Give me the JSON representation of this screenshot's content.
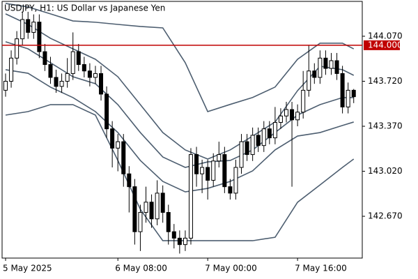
{
  "chart_data": {
    "type": "candlestick",
    "title": "USDJPY, H1:  US Dollar vs Japanese Yen",
    "categories": [
      "5 May 2025",
      null,
      null,
      null,
      null,
      null,
      null,
      null,
      null,
      null,
      null,
      null,
      null,
      null,
      null,
      null,
      null,
      null,
      null,
      null,
      "6 May 08:00",
      null,
      null,
      null,
      null,
      null,
      null,
      null,
      null,
      null,
      null,
      null,
      null,
      null,
      null,
      null,
      "7 May 00:00",
      null,
      null,
      null,
      null,
      null,
      null,
      null,
      null,
      null,
      null,
      null,
      null,
      null,
      null,
      null,
      "7 May 16:00",
      null,
      null,
      null,
      null,
      null,
      null,
      null,
      null,
      null,
      null
    ],
    "open": [
      143.65,
      143.72,
      143.9,
      144.05,
      144.2,
      144.1,
      144.18,
      143.95,
      143.85,
      143.75,
      143.68,
      143.72,
      143.78,
      143.95,
      143.85,
      143.8,
      143.75,
      143.78,
      143.62,
      143.35,
      143.2,
      143.25,
      143.0,
      142.9,
      142.55,
      142.7,
      142.78,
      142.65,
      142.85,
      142.7,
      142.55,
      142.5,
      142.45,
      142.5,
      143.15,
      143.0,
      143.05,
      142.95,
      143.1,
      143.15,
      142.9,
      142.85,
      143.05,
      143.25,
      143.15,
      143.3,
      143.22,
      143.35,
      143.28,
      143.4,
      143.45,
      143.5,
      143.42,
      143.48,
      143.65,
      143.8,
      143.75,
      143.9,
      143.82,
      143.88,
      143.78,
      143.52,
      143.65
    ],
    "high": [
      143.78,
      143.96,
      144.11,
      144.26,
      144.26,
      144.24,
      144.24,
      144.01,
      143.91,
      143.81,
      143.78,
      143.9,
      144.1,
      144.01,
      143.91,
      143.86,
      143.84,
      143.84,
      143.68,
      143.41,
      143.31,
      143.31,
      143.06,
      142.96,
      142.76,
      142.9,
      142.84,
      142.95,
      142.91,
      142.76,
      142.61,
      142.56,
      142.56,
      143.2,
      143.21,
      143.11,
      143.11,
      143.16,
      143.25,
      143.21,
      142.96,
      143.11,
      143.31,
      143.31,
      143.36,
      143.36,
      143.41,
      143.41,
      143.52,
      143.51,
      143.56,
      143.56,
      143.54,
      143.8,
      144.0,
      143.86,
      143.96,
      143.96,
      143.94,
      143.94,
      143.84,
      143.71,
      143.66
    ],
    "low": [
      143.6,
      143.67,
      143.85,
      144.0,
      144.05,
      144.05,
      143.9,
      143.8,
      143.7,
      143.63,
      143.63,
      143.67,
      143.73,
      143.8,
      143.75,
      143.68,
      143.7,
      143.57,
      143.28,
      143.05,
      143.02,
      142.9,
      142.7,
      142.45,
      142.4,
      142.62,
      142.58,
      142.6,
      142.62,
      142.45,
      142.42,
      142.38,
      142.4,
      142.45,
      142.9,
      142.85,
      142.8,
      142.9,
      143.05,
      142.85,
      142.8,
      142.8,
      143.0,
      143.1,
      143.1,
      143.17,
      143.17,
      143.23,
      143.23,
      143.35,
      143.4,
      142.9,
      143.37,
      143.43,
      143.6,
      143.7,
      143.7,
      143.77,
      143.77,
      143.73,
      143.47,
      143.47,
      143.55
    ],
    "close": [
      143.72,
      143.9,
      144.05,
      144.2,
      144.1,
      144.18,
      143.95,
      143.85,
      143.75,
      143.68,
      143.72,
      143.78,
      143.95,
      143.85,
      143.8,
      143.75,
      143.78,
      143.62,
      143.35,
      143.2,
      143.25,
      143.0,
      142.9,
      142.55,
      142.7,
      142.78,
      142.65,
      142.85,
      142.7,
      142.55,
      142.5,
      142.45,
      142.5,
      143.15,
      143.0,
      143.05,
      142.95,
      143.1,
      143.15,
      142.9,
      142.85,
      143.05,
      143.25,
      143.15,
      143.3,
      143.22,
      143.35,
      143.28,
      143.4,
      143.45,
      143.5,
      143.42,
      143.48,
      143.65,
      143.8,
      143.75,
      143.9,
      143.82,
      143.88,
      143.78,
      143.52,
      143.65,
      143.6
    ],
    "up_color": "#ffffff",
    "down_color": "#000000",
    "edge_color": "#000000",
    "bands": [
      {
        "color": "#4d5e70",
        "x": [
          0,
          4,
          8,
          12,
          16,
          20,
          24,
          28,
          32,
          36,
          40,
          44,
          48,
          52,
          56,
          60,
          62
        ],
        "values": [
          144.325,
          144.298,
          144.244,
          144.189,
          144.179,
          144.162,
          144.146,
          144.135,
          143.864,
          143.484,
          143.54,
          143.594,
          143.675,
          143.891,
          144.016,
          144.016,
          143.972
        ]
      },
      {
        "color": "#4d5e70",
        "x": [
          0,
          4,
          8,
          12,
          16,
          20,
          24,
          28,
          32,
          36,
          40,
          44,
          48,
          52,
          56,
          60,
          62
        ],
        "values": [
          144.244,
          144.162,
          144.054,
          143.972,
          143.891,
          143.755,
          143.538,
          143.321,
          143.186,
          143.115,
          143.186,
          143.294,
          143.403,
          143.647,
          143.837,
          143.81,
          143.766
        ]
      },
      {
        "color": "#4d5e70",
        "x": [
          0,
          4,
          8,
          12,
          16,
          20,
          24,
          28,
          32,
          36,
          40,
          44,
          48,
          52,
          56,
          60,
          62
        ],
        "values": [
          144.027,
          143.972,
          143.864,
          143.755,
          143.701,
          143.538,
          143.321,
          143.131,
          143.05,
          143.093,
          143.104,
          143.186,
          143.321,
          143.457,
          143.538,
          143.593,
          143.593
        ]
      },
      {
        "color": "#4d5e70",
        "x": [
          0,
          4,
          8,
          12,
          16,
          20,
          24,
          28,
          32,
          36,
          40,
          44,
          48,
          52,
          56,
          60,
          62
        ],
        "values": [
          143.81,
          143.782,
          143.674,
          143.593,
          143.484,
          143.321,
          143.104,
          142.941,
          142.86,
          142.887,
          142.941,
          143.023,
          143.186,
          143.294,
          143.321,
          143.376,
          143.403
        ]
      },
      {
        "color": "#4d5e70",
        "x": [
          0,
          4,
          8,
          12,
          16,
          20,
          24,
          28,
          32,
          36,
          40,
          44,
          48,
          52,
          56,
          60,
          62
        ],
        "values": [
          143.457,
          143.484,
          143.538,
          143.538,
          143.457,
          143.104,
          142.724,
          142.48,
          142.48,
          142.48,
          142.48,
          142.48,
          142.507,
          142.779,
          142.914,
          143.05,
          143.115
        ]
      }
    ],
    "hline": {
      "value": 144.0,
      "label": "144.000",
      "color": "#c00000"
    },
    "ylim": [
      142.345,
      144.341
    ],
    "yticks": [
      {
        "value": 144.07,
        "label": "144.070"
      },
      {
        "value": 143.72,
        "label": "143.720"
      },
      {
        "value": 143.37,
        "label": "143.370"
      },
      {
        "value": 143.02,
        "label": "143.020"
      },
      {
        "value": 142.67,
        "label": "142.670"
      }
    ]
  }
}
